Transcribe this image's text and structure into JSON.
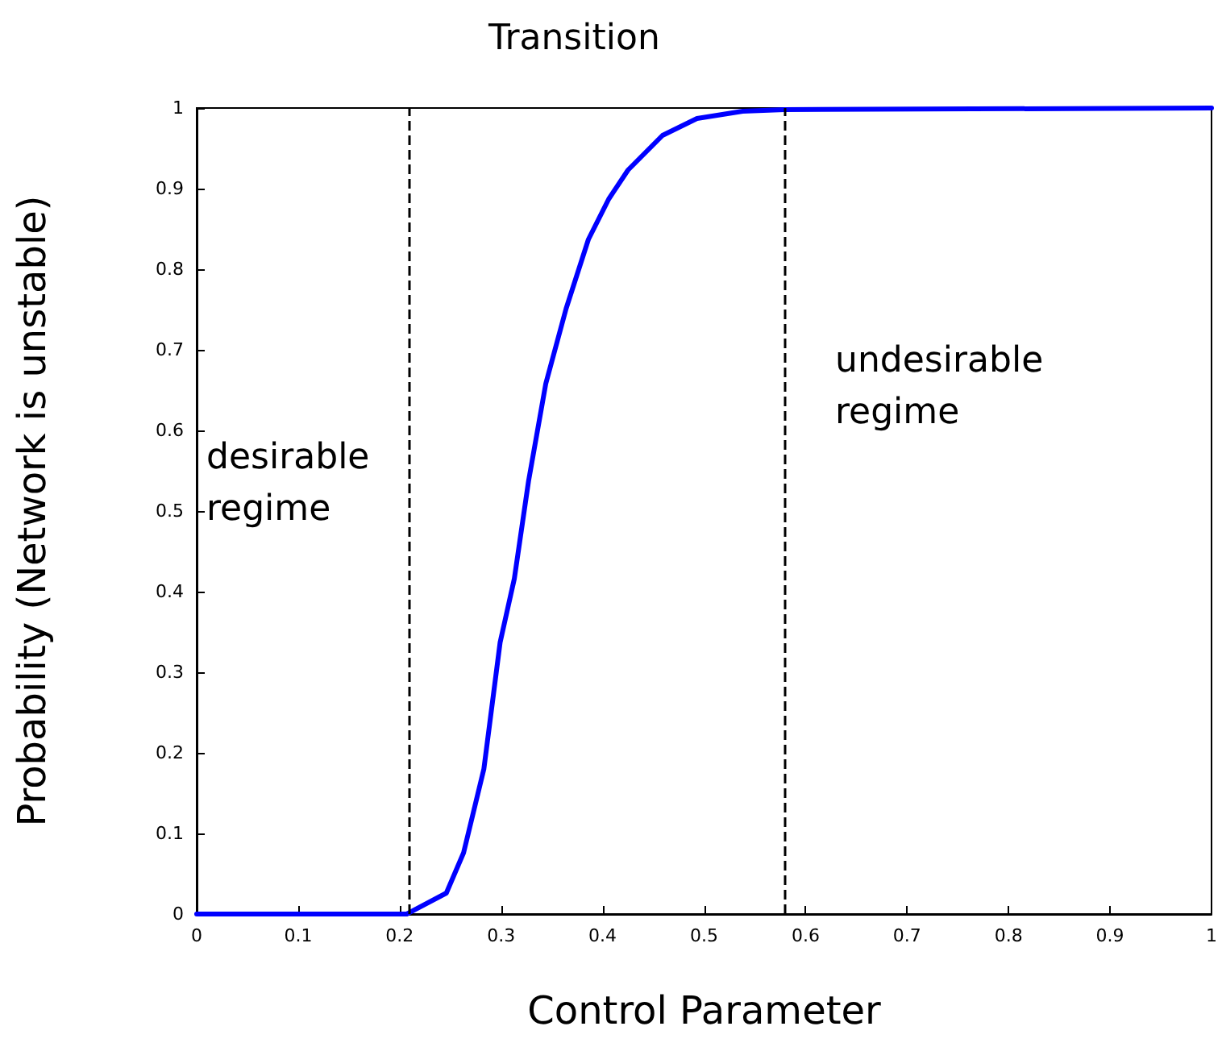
{
  "chart_data": {
    "type": "line",
    "xlabel": "Control Parameter",
    "ylabel": "Probability (Network is unstable)",
    "x": [
      0,
      0.207,
      0.246,
      0.263,
      0.283,
      0.299,
      0.313,
      0.327,
      0.344,
      0.364,
      0.386,
      0.406,
      0.425,
      0.459,
      0.493,
      0.538,
      0.579,
      1
    ],
    "series": [
      {
        "color": "#0000ff",
        "values": [
          0,
          0,
          0.026,
          0.076,
          0.18,
          0.337,
          0.416,
          0.537,
          0.658,
          0.751,
          0.837,
          0.887,
          0.923,
          0.966,
          0.987,
          0.996,
          0.998,
          1
        ]
      }
    ],
    "xlim": [
      0,
      1
    ],
    "xticks": [
      0,
      0.1,
      0.2,
      0.3,
      0.4,
      0.5,
      0.6,
      0.7,
      0.8,
      0.9,
      1
    ],
    "ylim": [
      0,
      1
    ],
    "yticks": [
      0,
      0.1,
      0.2,
      0.3,
      0.4,
      0.5,
      0.6,
      0.7,
      0.8,
      0.9,
      1
    ],
    "grid": false,
    "marker": "none",
    "line_style": "solid",
    "ref_lines": [
      {
        "axis": "x",
        "value": 0.206,
        "color": "#000000",
        "line_style": "dashed"
      },
      {
        "axis": "x",
        "value": 0.579,
        "color": "#000000",
        "line_style": "dashed"
      }
    ],
    "annotations": [
      "Transition",
      "desirable\nregime",
      "undesirable\nregime"
    ]
  }
}
